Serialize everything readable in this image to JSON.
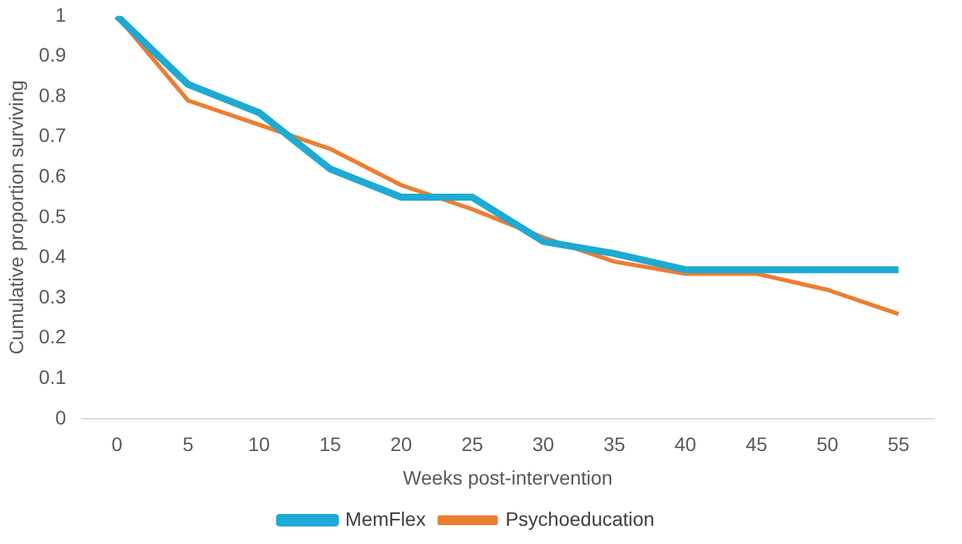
{
  "chart_data": {
    "type": "line",
    "xlabel": "Weeks post-intervention",
    "ylabel": "Cumulative proportion surviving",
    "categories": [
      "0",
      "5",
      "10",
      "15",
      "20",
      "25",
      "30",
      "35",
      "40",
      "45",
      "50",
      "55"
    ],
    "series": [
      {
        "name": "MemFlex",
        "color": "#1eaad2",
        "values": [
          1,
          0.83,
          0.76,
          0.62,
          0.55,
          0.55,
          0.44,
          0.41,
          0.37,
          0.37,
          0.37,
          0.37
        ]
      },
      {
        "name": "Psychoeducation",
        "color": "#ed7d31",
        "values": [
          1,
          0.79,
          0.73,
          0.67,
          0.58,
          0.52,
          0.45,
          0.39,
          0.36,
          0.36,
          0.32,
          0.26
        ]
      }
    ],
    "ylim": [
      0,
      1
    ],
    "yticks": [
      0,
      0.1,
      0.2,
      0.3,
      0.4,
      0.5,
      0.6,
      0.7,
      0.8,
      0.9,
      1
    ],
    "grid": false,
    "legend": "bottom",
    "marker": "none",
    "line_style": "solid"
  }
}
